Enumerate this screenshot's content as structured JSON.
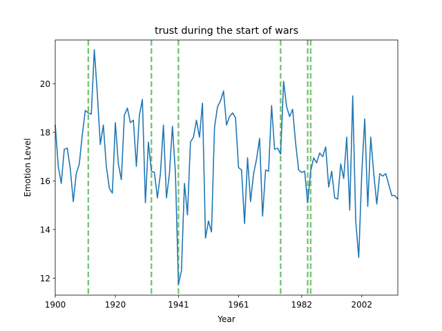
{
  "chart_data": {
    "type": "line",
    "title": "trust during the start of wars",
    "xlabel": "Year",
    "ylabel": "Emotion Level",
    "xlim": [
      1900,
      2014
    ],
    "ylim": [
      11.3,
      21.8
    ],
    "xticks": [
      1900,
      1920,
      1941,
      1961,
      1982,
      2002
    ],
    "yticks": [
      12,
      14,
      16,
      18,
      20
    ],
    "grid": false,
    "legend": "none",
    "series_color": "#1f77b4",
    "war_line_color": "#4daf4a",
    "war_starts": [
      1911,
      1932,
      1941,
      1975,
      1984,
      1985
    ],
    "series": [
      {
        "x": [
          1900,
          1901,
          1902,
          1903,
          1904,
          1905,
          1906,
          1907,
          1908,
          1909,
          1910,
          1911,
          1912,
          1913,
          1914,
          1915,
          1916,
          1917,
          1918,
          1919,
          1920,
          1921,
          1922,
          1923,
          1924,
          1925,
          1926,
          1927,
          1928,
          1929,
          1930,
          1931,
          1932,
          1933,
          1934,
          1935,
          1936,
          1937,
          1938,
          1939,
          1940,
          1941,
          1942,
          1943,
          1944,
          1945,
          1946,
          1947,
          1948,
          1949,
          1950,
          1951,
          1952,
          1953,
          1954,
          1955,
          1956,
          1957,
          1958,
          1959,
          1960,
          1961,
          1962,
          1963,
          1964,
          1965,
          1966,
          1967,
          1968,
          1969,
          1970,
          1971,
          1972,
          1973,
          1974,
          1975,
          1976,
          1977,
          1978,
          1979,
          1980,
          1981,
          1982,
          1983,
          1984,
          1985,
          1986,
          1987,
          1988,
          1989,
          1990,
          1991,
          1992,
          1993,
          1994,
          1995,
          1996,
          1997,
          1998,
          1999,
          2000,
          2001,
          2002,
          2003,
          2004,
          2005,
          2006,
          2007,
          2008,
          2009,
          2010,
          2011,
          2012,
          2013,
          2014
        ],
        "values": [
          18.3,
          16.6,
          15.9,
          17.3,
          17.35,
          16.5,
          15.15,
          16.3,
          16.7,
          17.9,
          18.9,
          18.8,
          18.75,
          21.4,
          19.6,
          17.5,
          18.3,
          16.6,
          15.7,
          15.5,
          18.4,
          16.7,
          16.05,
          18.7,
          19.0,
          18.4,
          18.5,
          16.6,
          18.7,
          19.35,
          15.1,
          17.6,
          16.4,
          16.35,
          15.3,
          16.3,
          18.3,
          15.3,
          16.3,
          18.25,
          16.3,
          11.75,
          12.3,
          15.9,
          14.6,
          17.6,
          17.8,
          18.5,
          17.8,
          19.2,
          13.65,
          14.35,
          13.9,
          18.2,
          19.05,
          19.3,
          19.7,
          18.3,
          18.65,
          18.8,
          18.6,
          16.55,
          16.45,
          14.25,
          16.95,
          15.15,
          16.3,
          16.9,
          17.75,
          14.55,
          16.45,
          16.4,
          19.1,
          17.3,
          17.35,
          17.1,
          20.1,
          19.05,
          18.65,
          18.95,
          17.55,
          16.45,
          16.35,
          16.4,
          15.1,
          16.4,
          16.95,
          16.75,
          17.15,
          17.0,
          17.4,
          15.75,
          16.4,
          15.3,
          15.25,
          16.7,
          16.1,
          17.8,
          14.8,
          19.5,
          14.35,
          12.85,
          16.3,
          18.55,
          14.95,
          17.8,
          16.3,
          15.05,
          16.3,
          16.2,
          16.3,
          15.85,
          15.4,
          15.4,
          15.25
        ]
      }
    ]
  }
}
